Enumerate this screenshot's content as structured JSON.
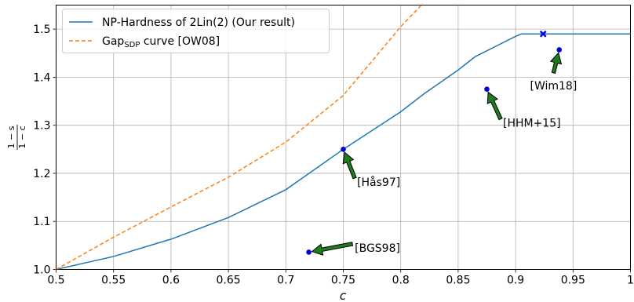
{
  "chart_data": {
    "type": "line",
    "title": "",
    "xlabel": "c",
    "ylabel_num": "1 − s",
    "ylabel_den": "1 − c",
    "xlim": [
      0.5,
      1.0
    ],
    "ylim": [
      1.0,
      1.55
    ],
    "grid": true,
    "legend_position": "top-left",
    "x_ticks": [
      0.5,
      0.55,
      0.6,
      0.65,
      0.7,
      0.75,
      0.8,
      0.85,
      0.9,
      0.95,
      1.0
    ],
    "x_tick_labels": [
      "0.5",
      "0.55",
      "0.6",
      "0.65",
      "0.7",
      "0.75",
      "0.8",
      "0.85",
      "0.9",
      "0.95",
      "1"
    ],
    "y_ticks": [
      1.0,
      1.1,
      1.2,
      1.3,
      1.4,
      1.5
    ],
    "y_tick_labels": [
      "1.0",
      "1.1",
      "1.2",
      "1.3",
      "1.4",
      "1.5"
    ],
    "series": [
      {
        "name": "NP-Hardness of 2Lin(2) (Our result)",
        "color": "#1f77b4",
        "style": "solid",
        "x": [
          0.5,
          0.55,
          0.6,
          0.65,
          0.7,
          0.75,
          0.8,
          0.82,
          0.85,
          0.865,
          0.9,
          0.905,
          0.93,
          1.0
        ],
        "y": [
          1.0,
          1.027,
          1.063,
          1.108,
          1.166,
          1.25,
          1.328,
          1.365,
          1.415,
          1.443,
          1.485,
          1.49,
          1.49,
          1.49
        ]
      },
      {
        "name": "Gap curve [OW08]",
        "name_main": "Gap",
        "name_sub": "SDP",
        "name_rest": " curve [OW08]",
        "color": "#ff7f0e",
        "style": "dashed",
        "x": [
          0.5,
          0.55,
          0.6,
          0.65,
          0.7,
          0.75,
          0.8,
          0.82
        ],
        "y": [
          1.0,
          1.067,
          1.13,
          1.192,
          1.265,
          1.362,
          1.505,
          1.555
        ]
      }
    ],
    "cross_marker": {
      "x": 0.924,
      "y": 1.49
    },
    "points": [
      {
        "label": "[BGS98]",
        "x": 0.72,
        "y": 1.036,
        "text_x": 0.76,
        "text_y": 1.045,
        "text_anchor": "start"
      },
      {
        "label": "[Hås97]",
        "x": 0.75,
        "y": 1.25,
        "text_x": 0.762,
        "text_y": 1.182,
        "text_anchor": "start"
      },
      {
        "label": "[HHM+15]",
        "x": 0.875,
        "y": 1.375,
        "text_x": 0.889,
        "text_y": 1.305,
        "text_anchor": "start"
      },
      {
        "label": "[Wim18]",
        "x": 0.938,
        "y": 1.457,
        "text_x": 0.933,
        "text_y": 1.383,
        "text_anchor": "middle"
      }
    ]
  }
}
